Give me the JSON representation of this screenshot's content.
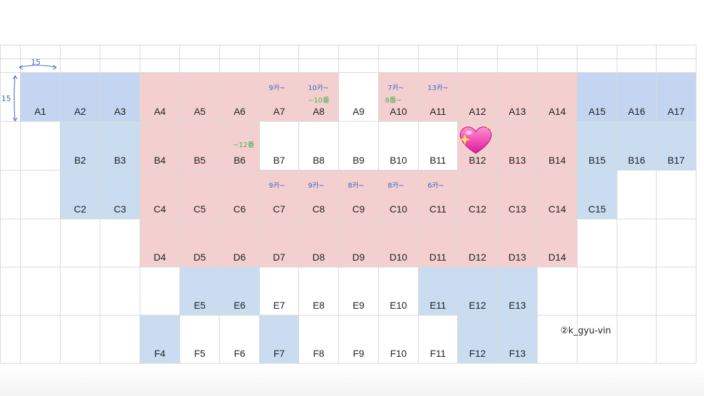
{
  "colors": {
    "blue": "#c9dcf0",
    "pink": "#f3cfd0",
    "ink": "#3d64c8",
    "green_ink": "#4caf50"
  },
  "dimensions": {
    "width_label": "15",
    "height_label": "15"
  },
  "signature": "②k_gyu-vin",
  "decoration": "sparkling-heart-icon",
  "rows": [
    {
      "id": "A",
      "cells": [
        {
          "label": "A1",
          "c": "blue2"
        },
        {
          "label": "A2",
          "c": "blue2"
        },
        {
          "label": "A3",
          "c": "blue2"
        },
        {
          "label": "A4",
          "c": "pink"
        },
        {
          "label": "A5",
          "c": "pink"
        },
        {
          "label": "A6",
          "c": "pink"
        },
        {
          "label": "A7",
          "c": "pink"
        },
        {
          "label": "A8",
          "c": "pink"
        },
        {
          "label": "A9",
          "c": "white"
        },
        {
          "label": "A10",
          "c": "pink"
        },
        {
          "label": "A11",
          "c": "pink"
        },
        {
          "label": "A12",
          "c": "pink"
        },
        {
          "label": "A13",
          "c": "pink"
        },
        {
          "label": "A14",
          "c": "pink"
        },
        {
          "label": "A15",
          "c": "blue2"
        },
        {
          "label": "A16",
          "c": "blue2"
        },
        {
          "label": "A17",
          "c": "blue2"
        }
      ]
    },
    {
      "id": "B",
      "cells": [
        {
          "label": "",
          "c": "white"
        },
        {
          "label": "B2",
          "c": "blue"
        },
        {
          "label": "B3",
          "c": "blue"
        },
        {
          "label": "B4",
          "c": "pink"
        },
        {
          "label": "B5",
          "c": "pink"
        },
        {
          "label": "B6",
          "c": "pink"
        },
        {
          "label": "B7",
          "c": "white"
        },
        {
          "label": "B8",
          "c": "white"
        },
        {
          "label": "B9",
          "c": "white"
        },
        {
          "label": "B10",
          "c": "white"
        },
        {
          "label": "B11",
          "c": "white"
        },
        {
          "label": "B12",
          "c": "pink"
        },
        {
          "label": "B13",
          "c": "pink"
        },
        {
          "label": "B14",
          "c": "pink"
        },
        {
          "label": "B15",
          "c": "blue"
        },
        {
          "label": "B16",
          "c": "blue"
        },
        {
          "label": "B17",
          "c": "blue"
        }
      ]
    },
    {
      "id": "C",
      "cells": [
        {
          "label": "",
          "c": "white"
        },
        {
          "label": "C2",
          "c": "blue"
        },
        {
          "label": "C3",
          "c": "blue"
        },
        {
          "label": "C4",
          "c": "pink"
        },
        {
          "label": "C5",
          "c": "pink"
        },
        {
          "label": "C6",
          "c": "pink"
        },
        {
          "label": "C7",
          "c": "pink"
        },
        {
          "label": "C8",
          "c": "pink"
        },
        {
          "label": "C9",
          "c": "pink"
        },
        {
          "label": "C10",
          "c": "pink"
        },
        {
          "label": "C11",
          "c": "pink"
        },
        {
          "label": "C12",
          "c": "pink"
        },
        {
          "label": "C13",
          "c": "pink"
        },
        {
          "label": "C14",
          "c": "pink"
        },
        {
          "label": "C15",
          "c": "blue"
        },
        {
          "label": "",
          "c": "white"
        },
        {
          "label": "",
          "c": "white"
        }
      ]
    },
    {
      "id": "D",
      "cells": [
        {
          "label": "",
          "c": "white"
        },
        {
          "label": "",
          "c": "white"
        },
        {
          "label": "",
          "c": "white"
        },
        {
          "label": "D4",
          "c": "pink"
        },
        {
          "label": "D5",
          "c": "pink"
        },
        {
          "label": "D6",
          "c": "pink"
        },
        {
          "label": "D7",
          "c": "pink"
        },
        {
          "label": "D8",
          "c": "pink"
        },
        {
          "label": "D9",
          "c": "pink"
        },
        {
          "label": "D10",
          "c": "pink"
        },
        {
          "label": "D11",
          "c": "pink"
        },
        {
          "label": "D12",
          "c": "pink"
        },
        {
          "label": "D13",
          "c": "pink"
        },
        {
          "label": "D14",
          "c": "pink"
        },
        {
          "label": "",
          "c": "white"
        },
        {
          "label": "",
          "c": "white"
        },
        {
          "label": "",
          "c": "white"
        }
      ]
    },
    {
      "id": "E",
      "cells": [
        {
          "label": "",
          "c": "white"
        },
        {
          "label": "",
          "c": "white"
        },
        {
          "label": "",
          "c": "white"
        },
        {
          "label": "",
          "c": "white"
        },
        {
          "label": "E5",
          "c": "blue"
        },
        {
          "label": "E6",
          "c": "blue"
        },
        {
          "label": "E7",
          "c": "white"
        },
        {
          "label": "E8",
          "c": "white"
        },
        {
          "label": "E9",
          "c": "white"
        },
        {
          "label": "E10",
          "c": "white"
        },
        {
          "label": "E11",
          "c": "blue"
        },
        {
          "label": "E12",
          "c": "blue"
        },
        {
          "label": "E13",
          "c": "blue"
        },
        {
          "label": "",
          "c": "white"
        },
        {
          "label": "",
          "c": "white"
        },
        {
          "label": "",
          "c": "white"
        },
        {
          "label": "",
          "c": "white"
        }
      ]
    },
    {
      "id": "F",
      "cells": [
        {
          "label": "",
          "c": "white"
        },
        {
          "label": "",
          "c": "white"
        },
        {
          "label": "",
          "c": "white"
        },
        {
          "label": "F4",
          "c": "blue"
        },
        {
          "label": "F5",
          "c": "white"
        },
        {
          "label": "F6",
          "c": "white"
        },
        {
          "label": "F7",
          "c": "blue"
        },
        {
          "label": "F8",
          "c": "white"
        },
        {
          "label": "F9",
          "c": "white"
        },
        {
          "label": "F10",
          "c": "white"
        },
        {
          "label": "F11",
          "c": "white"
        },
        {
          "label": "F12",
          "c": "blue"
        },
        {
          "label": "F13",
          "c": "blue"
        },
        {
          "label": "",
          "c": "white"
        },
        {
          "label": "",
          "c": "white"
        },
        {
          "label": "",
          "c": "white"
        },
        {
          "label": "",
          "c": "white"
        }
      ]
    }
  ],
  "notes": [
    {
      "row": 0,
      "col": 6,
      "text": "9카~",
      "color": "blue"
    },
    {
      "row": 0,
      "col": 7,
      "text": "10카~",
      "color": "blue"
    },
    {
      "row": 0,
      "col": 7,
      "text": "~10番",
      "color": "green",
      "line": 2
    },
    {
      "row": 0,
      "col": 9,
      "text": "7카~",
      "color": "blue"
    },
    {
      "row": 0,
      "col": 9,
      "text": "8番~",
      "color": "green",
      "line": 2
    },
    {
      "row": 0,
      "col": 10,
      "text": "13카~",
      "color": "blue"
    },
    {
      "row": 1,
      "col": 5,
      "text": "~12番",
      "color": "green"
    },
    {
      "row": 2,
      "col": 6,
      "text": "9카~",
      "color": "blue"
    },
    {
      "row": 2,
      "col": 7,
      "text": "9카~",
      "color": "blue"
    },
    {
      "row": 2,
      "col": 8,
      "text": "8카~",
      "color": "blue"
    },
    {
      "row": 2,
      "col": 9,
      "text": "8카~",
      "color": "blue"
    },
    {
      "row": 2,
      "col": 10,
      "text": "6카~",
      "color": "blue"
    }
  ]
}
